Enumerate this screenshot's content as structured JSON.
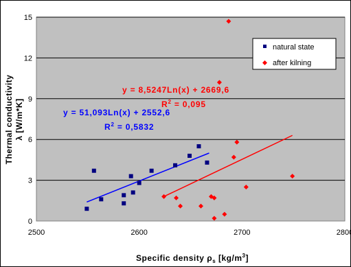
{
  "chart_data": {
    "type": "scatter",
    "xlabel": "Specific density",
    "xlabel_symbol": "ρ",
    "xlabel_subscript": "s",
    "xlabel_units": "[kg/m",
    "xlabel_units_sup": "3",
    "xlabel_units_end": "]",
    "ylabel_line1": "Thermal conductivity",
    "ylabel_symbol": "λ",
    "ylabel_units": "[W/m*K]",
    "xlim": [
      2500,
      2800
    ],
    "ylim": [
      0,
      15
    ],
    "x_ticks": [
      "2500",
      "2600",
      "2700",
      "2800"
    ],
    "x_tick_values": [
      2500,
      2600,
      2700,
      2800
    ],
    "y_ticks": [
      "0",
      "3",
      "6",
      "9",
      "12",
      "15"
    ],
    "y_tick_values": [
      0,
      3,
      6,
      9,
      12,
      15
    ],
    "grid": "horizontal",
    "legend_position": "top-right",
    "series": [
      {
        "name": "natural state",
        "color": "#000080",
        "marker": "square",
        "points": [
          [
            2549,
            0.9
          ],
          [
            2556,
            3.7
          ],
          [
            2563,
            1.6
          ],
          [
            2585,
            1.3
          ],
          [
            2585,
            1.9
          ],
          [
            2592,
            3.3
          ],
          [
            2594,
            2.1
          ],
          [
            2600,
            2.8
          ],
          [
            2612,
            3.7
          ],
          [
            2635,
            4.1
          ],
          [
            2649,
            4.8
          ],
          [
            2658,
            5.5
          ],
          [
            2666,
            4.3
          ]
        ],
        "trendline": {
          "type": "log",
          "a": 51.093,
          "b": 2552.6,
          "x_from": 2549,
          "x_to": 2668,
          "y_from": 1.4,
          "y_to": 5.0
        },
        "equation": "y = 51,093Ln(x) + 2552,6",
        "r2_label": "R",
        "r2_sup": "2",
        "r2_value": " = 0,5832"
      },
      {
        "name": "after kilning",
        "color": "#ff0000",
        "marker": "diamond",
        "points": [
          [
            2624,
            1.8
          ],
          [
            2636,
            1.7
          ],
          [
            2640,
            1.1
          ],
          [
            2660,
            1.1
          ],
          [
            2670,
            1.8
          ],
          [
            2673,
            0.2
          ],
          [
            2673,
            1.7
          ],
          [
            2678,
            10.2
          ],
          [
            2683,
            0.5
          ],
          [
            2687,
            14.7
          ],
          [
            2692,
            4.7
          ],
          [
            2695,
            5.8
          ],
          [
            2704,
            2.5
          ],
          [
            2749,
            3.3
          ]
        ],
        "trendline": {
          "type": "log",
          "a": 8.5247,
          "b": 2669.6,
          "x_from": 2624,
          "x_to": 2749,
          "y_from": 1.8,
          "y_to": 6.3
        },
        "equation": "y = 8,5247Ln(x) + 2669,6",
        "r2_label": "R",
        "r2_sup": "2",
        "r2_value": " = 0,095"
      }
    ]
  }
}
